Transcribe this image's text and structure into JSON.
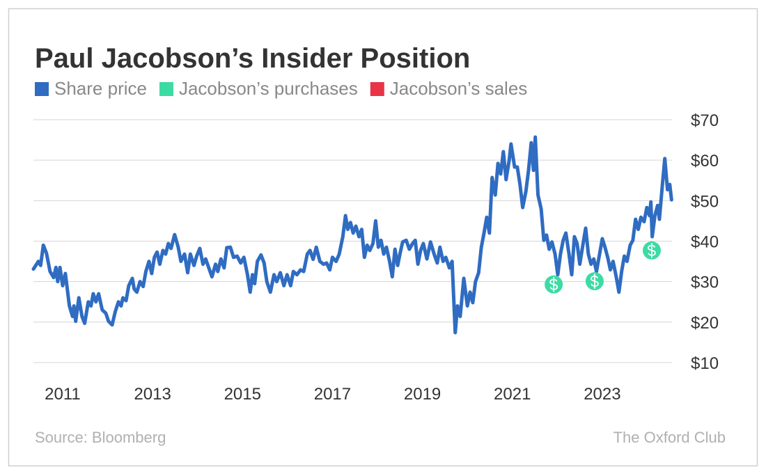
{
  "chart_data": {
    "type": "line",
    "title": "Paul Jacobson’s Insider Position",
    "source": "Source: Bloomberg",
    "credit": "The Oxford Club",
    "legend": "top-left",
    "grid": true,
    "xlim": [
      2010.35,
      2024.55
    ],
    "xticks": [
      2011,
      2013,
      2015,
      2017,
      2019,
      2021,
      2023
    ],
    "ylim": [
      10,
      70
    ],
    "yticks": [
      {
        "value": 10,
        "label": "$10"
      },
      {
        "value": 20,
        "label": "$20"
      },
      {
        "value": 30,
        "label": "$30"
      },
      {
        "value": 40,
        "label": "$40"
      },
      {
        "value": 50,
        "label": "$50"
      },
      {
        "value": 60,
        "label": "$60"
      },
      {
        "value": 70,
        "label": "$70"
      }
    ],
    "series": [
      {
        "name": "Share price",
        "color": "#2f6cc2",
        "type": "line",
        "x": [
          2010.35,
          2010.46,
          2010.51,
          2010.57,
          2010.64,
          2010.72,
          2010.8,
          2010.85,
          2010.89,
          2010.94,
          2011.0,
          2011.06,
          2011.15,
          2011.22,
          2011.25,
          2011.29,
          2011.36,
          2011.43,
          2011.49,
          2011.57,
          2011.63,
          2011.68,
          2011.74,
          2011.8,
          2011.88,
          2011.96,
          2012.02,
          2012.1,
          2012.17,
          2012.24,
          2012.3,
          2012.34,
          2012.41,
          2012.47,
          2012.55,
          2012.59,
          2012.65,
          2012.72,
          2012.79,
          2012.85,
          2012.92,
          2012.98,
          2013.04,
          2013.1,
          2013.16,
          2013.23,
          2013.29,
          2013.35,
          2013.41,
          2013.49,
          2013.57,
          2013.63,
          2013.71,
          2013.78,
          2013.84,
          2013.92,
          2013.98,
          2014.05,
          2014.12,
          2014.18,
          2014.25,
          2014.32,
          2014.4,
          2014.45,
          2014.52,
          2014.59,
          2014.65,
          2014.73,
          2014.8,
          2014.88,
          2014.96,
          2015.03,
          2015.11,
          2015.17,
          2015.22,
          2015.27,
          2015.33,
          2015.41,
          2015.48,
          2015.54,
          2015.62,
          2015.7,
          2015.76,
          2015.84,
          2015.92,
          2015.99,
          2016.07,
          2016.13,
          2016.21,
          2016.29,
          2016.36,
          2016.44,
          2016.5,
          2016.57,
          2016.64,
          2016.72,
          2016.8,
          2016.87,
          2016.94,
          2017.0,
          2017.08,
          2017.15,
          2017.23,
          2017.29,
          2017.34,
          2017.4,
          2017.46,
          2017.52,
          2017.59,
          2017.65,
          2017.71,
          2017.77,
          2017.83,
          2017.9,
          2017.96,
          2018.02,
          2018.08,
          2018.14,
          2018.2,
          2018.27,
          2018.33,
          2018.39,
          2018.45,
          2018.5,
          2018.56,
          2018.64,
          2018.71,
          2018.78,
          2018.84,
          2018.9,
          2018.96,
          2019.02,
          2019.1,
          2019.18,
          2019.26,
          2019.33,
          2019.39,
          2019.46,
          2019.52,
          2019.6,
          2019.66,
          2019.73,
          2019.78,
          2019.84,
          2019.92,
          2020.0,
          2020.06,
          2020.12,
          2020.18,
          2020.25,
          2020.31,
          2020.37,
          2020.43,
          2020.49,
          2020.55,
          2020.62,
          2020.68,
          2020.74,
          2020.8,
          2020.86,
          2020.93,
          2020.97,
          2021.05,
          2021.11,
          2021.17,
          2021.23,
          2021.3,
          2021.36,
          2021.42,
          2021.47,
          2021.51,
          2021.57,
          2021.64,
          2021.7,
          2021.76,
          2021.82,
          2021.88,
          2021.95,
          2022.01,
          2022.07,
          2022.13,
          2022.19,
          2022.26,
          2022.32,
          2022.38,
          2022.44,
          2022.5,
          2022.56,
          2022.63,
          2022.69,
          2022.75,
          2022.81,
          2022.87,
          2022.94,
          2023.0,
          2023.06,
          2023.12,
          2023.18,
          2023.24,
          2023.31,
          2023.37,
          2023.43,
          2023.49,
          2023.55,
          2023.62,
          2023.68,
          2023.74,
          2023.8,
          2023.86,
          2023.93,
          2023.99,
          2024.05,
          2024.08,
          2024.11,
          2024.17,
          2024.23,
          2024.27,
          2024.33,
          2024.39,
          2024.45,
          2024.5,
          2024.54
        ],
        "values": [
          33.1,
          35,
          34,
          39,
          37,
          32.5,
          31,
          33.5,
          30,
          33.5,
          29,
          32,
          24,
          21.4,
          24,
          20.2,
          26,
          21.4,
          19.7,
          25,
          24,
          27,
          25,
          27,
          23,
          22.2,
          20.2,
          19.3,
          22.6,
          25,
          24,
          26,
          25.3,
          29,
          30.8,
          28.2,
          27.4,
          30,
          28.8,
          32.5,
          35,
          32,
          36,
          37.3,
          34.3,
          37.7,
          36.8,
          39.4,
          38.2,
          41.6,
          38.5,
          35,
          36.8,
          32.2,
          36.8,
          34,
          36.3,
          38.2,
          34.3,
          35.6,
          33.4,
          31.2,
          34.3,
          32.5,
          35.6,
          33.4,
          38.4,
          38.5,
          36,
          36.3,
          34.6,
          36,
          31.7,
          27.4,
          31.7,
          29.5,
          35,
          36.6,
          34.6,
          30,
          27.4,
          31.7,
          30,
          32.2,
          29,
          31.7,
          29,
          32.5,
          31.7,
          32.9,
          32.5,
          36.8,
          37.7,
          35.5,
          38.5,
          35,
          34.3,
          34.6,
          32.9,
          36,
          35,
          36.8,
          41.1,
          46.3,
          42.9,
          44.6,
          42,
          43.7,
          41.1,
          42.9,
          36,
          39,
          37.7,
          39.4,
          45,
          38.5,
          40.2,
          36.8,
          38.5,
          35,
          31.2,
          38,
          34,
          36.8,
          39.8,
          40.2,
          38,
          39.4,
          40.2,
          34.3,
          37.7,
          39.4,
          35.6,
          39.8,
          36.8,
          34.6,
          38.5,
          35,
          36,
          33.4,
          35,
          17.4,
          24,
          21.4,
          30.8,
          24,
          27.4,
          24.8,
          30,
          32.2,
          38.5,
          42,
          45.9,
          42,
          55.7,
          51.4,
          59.2,
          56.6,
          62.1,
          55.2,
          60,
          64,
          58.3,
          58.3,
          54,
          48.3,
          52.2,
          57.5,
          64.3,
          57.5,
          65.7,
          51.4,
          48,
          40.2,
          41.5,
          38,
          39.8,
          36.8,
          31.7,
          36.8,
          40.2,
          42,
          36.8,
          31.7,
          41.1,
          39.4,
          34.3,
          38.5,
          43.2,
          36.8,
          34.3,
          35.6,
          32.5,
          36.8,
          40.6,
          38.5,
          36,
          32.9,
          35,
          31.2,
          27.4,
          32.5,
          36.3,
          35,
          39,
          40.2,
          45.4,
          42.9,
          45.9,
          44.8,
          48.3,
          46.3,
          49.7,
          41.1,
          46.3,
          48.8,
          45.4,
          53.1,
          60.4,
          52.7,
          54,
          50.2
        ]
      },
      {
        "name": "Jacobson’s purchases",
        "color": "#3ddba4",
        "type": "scatter",
        "x": [
          2021.92,
          2022.83,
          2024.1
        ],
        "values": [
          29.3,
          30.1,
          37.7
        ]
      },
      {
        "name": "Jacobson’s sales",
        "color": "#e83446",
        "type": "scatter",
        "x": [],
        "values": []
      }
    ]
  }
}
